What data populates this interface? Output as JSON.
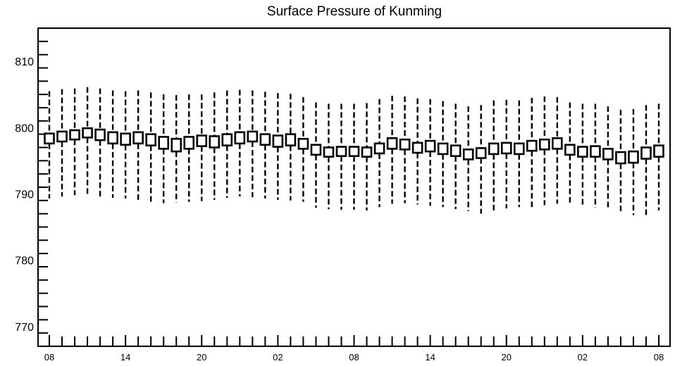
{
  "chart_data": {
    "type": "boxplot",
    "title": "Surface Pressure of Kunming",
    "xlabel": "",
    "ylabel": "",
    "ylim": [
      767,
      815
    ],
    "y_ticks": [
      770,
      780,
      790,
      800,
      810
    ],
    "x_tick_labels": [
      "08",
      "14",
      "20",
      "02",
      "08",
      "14",
      "20",
      "02",
      "08"
    ],
    "grid": false,
    "box_count": 49,
    "whisker_low": [
      789.3,
      789.6,
      789.8,
      789.8,
      789.6,
      789.4,
      789.3,
      789.0,
      788.7,
      788.6,
      788.7,
      788.8,
      788.9,
      789.1,
      789.4,
      789.6,
      789.5,
      789.3,
      789.1,
      789.0,
      788.8,
      787.9,
      787.7,
      787.6,
      787.6,
      787.5,
      788.0,
      788.5,
      788.6,
      788.4,
      788.2,
      788.0,
      787.7,
      787.4,
      787.0,
      787.2,
      787.8,
      788.0,
      788.0,
      788.3,
      788.5,
      788.6,
      788.1,
      787.9,
      787.7,
      787.3,
      786.8,
      786.8,
      787.5
    ],
    "whisker_high": [
      805.5,
      805.8,
      805.9,
      806.1,
      805.9,
      805.6,
      805.5,
      805.6,
      805.3,
      805.0,
      804.9,
      805.0,
      805.0,
      805.3,
      805.6,
      805.7,
      805.6,
      805.4,
      805.2,
      805.1,
      804.6,
      803.8,
      803.6,
      803.6,
      803.6,
      803.7,
      804.3,
      804.8,
      804.7,
      804.4,
      804.3,
      804.0,
      803.6,
      803.2,
      803.4,
      804.1,
      804.2,
      804.1,
      804.5,
      804.7,
      804.6,
      803.8,
      803.6,
      803.6,
      803.2,
      802.7,
      802.8,
      803.4,
      803.6
    ],
    "q1": [
      797.6,
      797.9,
      798.2,
      798.5,
      798.1,
      797.6,
      797.4,
      797.6,
      797.3,
      796.8,
      796.4,
      796.8,
      797.2,
      797.0,
      797.3,
      797.6,
      797.9,
      797.4,
      797.1,
      797.3,
      796.8,
      795.9,
      795.6,
      795.7,
      795.7,
      795.6,
      796.1,
      796.8,
      796.7,
      796.2,
      796.4,
      796.0,
      795.7,
      795.2,
      795.4,
      796.0,
      796.1,
      796.0,
      796.5,
      796.7,
      796.8,
      795.9,
      795.6,
      795.6,
      795.2,
      794.6,
      794.7,
      795.3,
      795.6
    ],
    "q3": [
      799.1,
      799.4,
      799.6,
      799.9,
      799.7,
      799.3,
      799.1,
      799.3,
      799.0,
      798.6,
      798.3,
      798.6,
      798.8,
      798.7,
      799.0,
      799.3,
      799.4,
      799.0,
      798.8,
      799.0,
      798.3,
      797.4,
      797.0,
      797.1,
      797.1,
      797.0,
      797.6,
      798.4,
      798.2,
      797.7,
      798.0,
      797.6,
      797.3,
      796.7,
      796.9,
      797.6,
      797.7,
      797.6,
      798.0,
      798.2,
      798.4,
      797.4,
      797.1,
      797.2,
      796.8,
      796.3,
      796.4,
      797.0,
      797.3
    ]
  }
}
